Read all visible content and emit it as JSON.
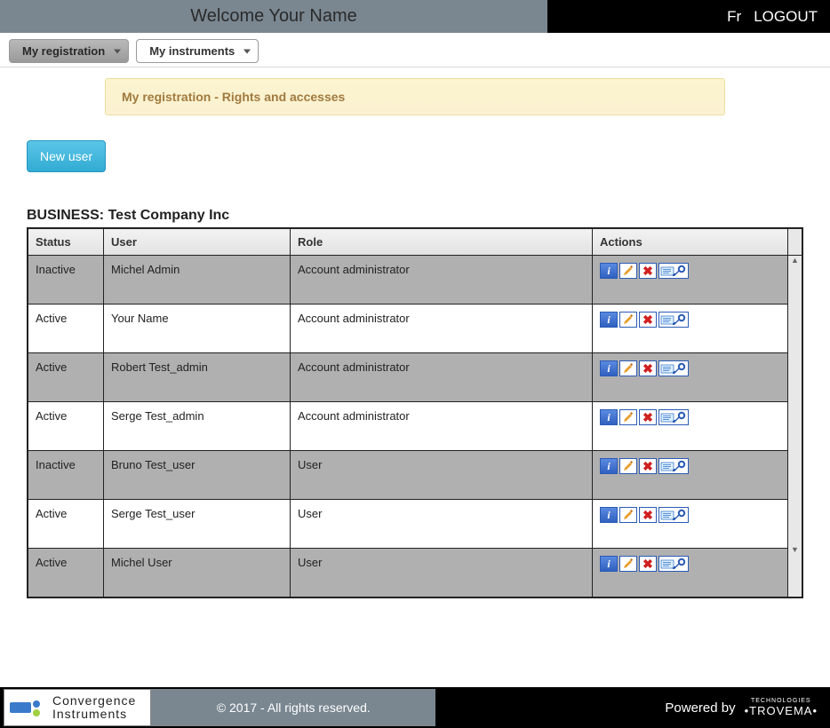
{
  "topbar": {
    "welcome": "Welcome  Your Name",
    "lang": "Fr",
    "logout": "LOGOUT"
  },
  "menu": {
    "registration": "My registration",
    "instruments": "My instruments"
  },
  "banner": "My registration - Rights and accesses",
  "buttons": {
    "new_user": "New user"
  },
  "business": {
    "label": "BUSINESS:",
    "name": "Test Company Inc"
  },
  "table": {
    "columns": [
      "Status",
      "User",
      "Role",
      "Actions"
    ],
    "rows": [
      {
        "status": "Inactive",
        "user": "Michel Admin",
        "role": "Account administrator",
        "shade": "gray"
      },
      {
        "status": "Active",
        "user": "Your Name",
        "role": "Account administrator",
        "shade": "white"
      },
      {
        "status": "Active",
        "user": "Robert Test_admin",
        "role": "Account administrator",
        "shade": "gray"
      },
      {
        "status": "Active",
        "user": "Serge Test_admin",
        "role": "Account administrator",
        "shade": "white"
      },
      {
        "status": "Inactive",
        "user": "Bruno Test_user",
        "role": "User",
        "shade": "gray"
      },
      {
        "status": "Active",
        "user": "Serge Test_user",
        "role": "User",
        "shade": "white"
      },
      {
        "status": "Active",
        "user": "Michel User",
        "role": "User",
        "shade": "gray"
      }
    ]
  },
  "footer": {
    "brand1": "Convergence",
    "brand2": "Instruments",
    "copyright": "© 2017 - All rights reserved.",
    "powered": "Powered by",
    "trovema_small": "TECHNOLOGIES",
    "trovema_big": "•TROVEMA•"
  },
  "colors": {
    "topbar_welcome_bg": "#7a8791",
    "banner_bg": "#fbf1d2",
    "banner_text": "#a07a3f",
    "newuser_bg": "#3db6db",
    "row_gray": "#b0b0b0",
    "icon_border": "#2a5bb5"
  }
}
